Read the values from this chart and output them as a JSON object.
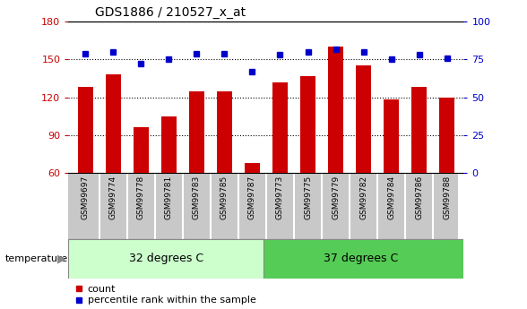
{
  "title": "GDS1886 / 210527_x_at",
  "samples": [
    "GSM99697",
    "GSM99774",
    "GSM99778",
    "GSM99781",
    "GSM99783",
    "GSM99785",
    "GSM99787",
    "GSM99773",
    "GSM99775",
    "GSM99779",
    "GSM99782",
    "GSM99784",
    "GSM99786",
    "GSM99788"
  ],
  "count": [
    128,
    138,
    96,
    105,
    125,
    125,
    68,
    132,
    137,
    160,
    145,
    118,
    128,
    120
  ],
  "percentile": [
    79,
    80,
    72,
    75,
    79,
    79,
    67,
    78,
    80,
    82,
    80,
    75,
    78,
    76
  ],
  "group1_label": "32 degrees C",
  "group2_label": "37 degrees C",
  "group1_count": 7,
  "group2_count": 7,
  "ylim_left": [
    60,
    180
  ],
  "ylim_right": [
    0,
    100
  ],
  "yticks_left": [
    60,
    90,
    120,
    150,
    180
  ],
  "yticks_right": [
    0,
    25,
    50,
    75,
    100
  ],
  "bar_color": "#CC0000",
  "dot_color": "#0000CC",
  "group1_bg": "#CCFFCC",
  "group2_bg": "#55CC55",
  "tick_bg": "#C8C8C8",
  "legend_count_label": "count",
  "legend_pct_label": "percentile rank within the sample",
  "temp_label": "temperature",
  "gridline_color": "#000000",
  "right_axis_color": "#0000CC",
  "left_axis_color": "#CC0000",
  "title_fontsize": 10,
  "bar_width": 0.55,
  "dot_size": 5
}
